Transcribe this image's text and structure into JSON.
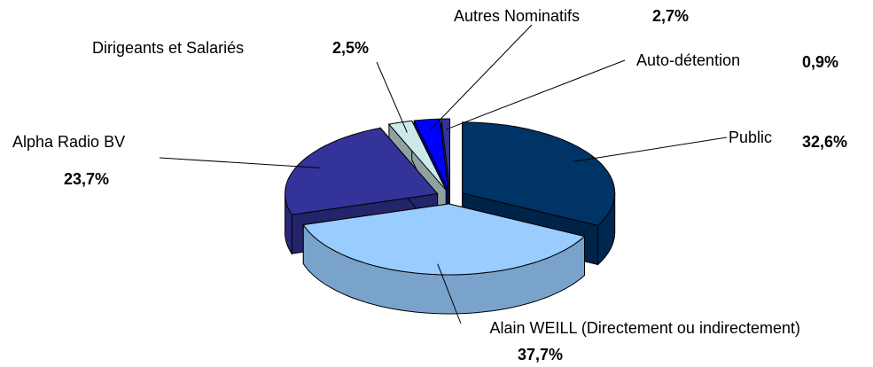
{
  "chart_data": {
    "type": "pie3d",
    "categories": [
      "Public",
      "Alain WEILL (Directement ou indirectement)",
      "Alpha Radio BV",
      "Dirigeants et Salariés",
      "Autres Nominatifs",
      "Auto-détention"
    ],
    "values": [
      32.6,
      37.7,
      23.7,
      2.5,
      2.7,
      0.9
    ],
    "value_labels": [
      "32,6%",
      "37,7%",
      "23,7%",
      "2,5%",
      "2,7%",
      "0,9%"
    ],
    "colors": [
      "#003366",
      "#99ccff",
      "#333399",
      "#cce8e8",
      "#0000ff",
      "#333399"
    ]
  }
}
